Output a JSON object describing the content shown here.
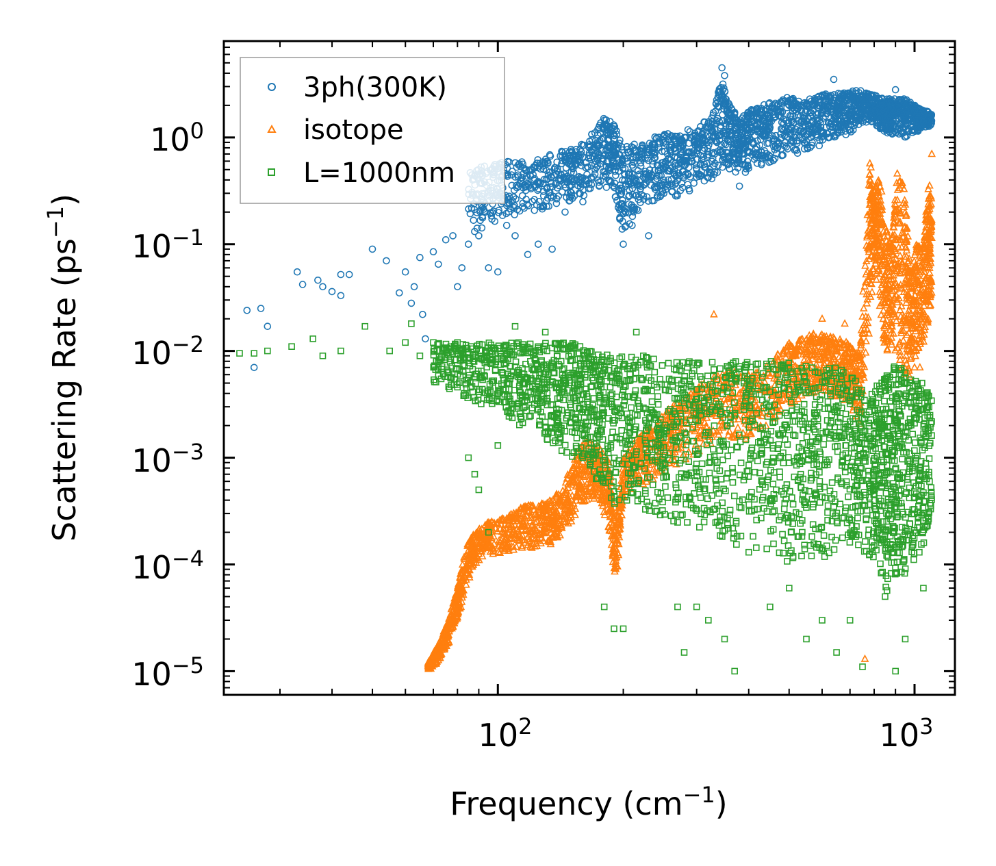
{
  "chart_data": {
    "type": "scatter",
    "title": "",
    "xlabel": {
      "base": "Frequency (cm",
      "exp": "−1",
      "suffix": ")"
    },
    "ylabel": {
      "base": "Scattering Rate (ps",
      "exp": "−1",
      "suffix": ")"
    },
    "xscale": "log",
    "yscale": "log",
    "xlim": [
      22,
      1250
    ],
    "ylim": [
      6e-06,
      8
    ],
    "x_tick_labels": [
      {
        "value": 100,
        "base": "10",
        "exp": "2"
      },
      {
        "value": 1000,
        "base": "10",
        "exp": "3"
      }
    ],
    "y_tick_labels": [
      {
        "value": 1,
        "base": "10",
        "exp": "0"
      },
      {
        "value": 0.1,
        "base": "10",
        "exp": "−1"
      },
      {
        "value": 0.01,
        "base": "10",
        "exp": "−2"
      },
      {
        "value": 0.001,
        "base": "10",
        "exp": "−3"
      },
      {
        "value": 0.0001,
        "base": "10",
        "exp": "−4"
      },
      {
        "value": 1e-05,
        "base": "10",
        "exp": "−5"
      }
    ],
    "legend_position": "top-left",
    "series": [
      {
        "name": "3ph(300K)",
        "marker": "circle",
        "color": "#1f77b4",
        "points": [
          [
            25,
            0.024
          ],
          [
            26,
            0.007
          ],
          [
            27,
            0.025
          ],
          [
            28,
            0.017
          ],
          [
            33,
            0.055
          ],
          [
            34,
            0.042
          ],
          [
            37,
            0.046
          ],
          [
            38,
            0.04
          ],
          [
            40,
            0.036
          ],
          [
            42,
            0.052
          ],
          [
            44,
            0.052
          ],
          [
            42,
            0.033
          ],
          [
            50,
            0.09
          ],
          [
            54,
            0.07
          ],
          [
            58,
            0.035
          ],
          [
            60,
            0.055
          ],
          [
            62,
            0.028
          ],
          [
            63,
            0.04
          ],
          [
            65,
            0.075
          ],
          [
            66,
            0.022
          ],
          [
            67,
            0.013
          ],
          [
            70,
            0.085
          ],
          [
            72,
            0.065
          ],
          [
            75,
            0.11
          ],
          [
            78,
            0.12
          ],
          [
            80,
            0.04
          ],
          [
            82,
            0.06
          ],
          [
            85,
            0.1
          ],
          [
            90,
            0.12
          ],
          [
            95,
            0.06
          ],
          [
            100,
            0.055
          ],
          [
            105,
            0.15
          ],
          [
            110,
            0.12
          ],
          [
            118,
            0.08
          ],
          [
            125,
            0.1
          ],
          [
            135,
            0.09
          ],
          [
            145,
            0.2
          ],
          [
            160,
            0.25
          ],
          [
            175,
            0.35
          ],
          [
            185,
            0.8
          ],
          [
            200,
            0.1
          ],
          [
            210,
            0.15
          ],
          [
            230,
            0.12
          ],
          [
            250,
            0.4
          ],
          [
            300,
            0.5
          ],
          [
            330,
            0.45
          ],
          [
            345,
            4.5
          ],
          [
            350,
            3.8
          ],
          [
            380,
            0.35
          ],
          [
            420,
            1.2
          ],
          [
            450,
            1.5
          ],
          [
            500,
            2.0
          ],
          [
            550,
            1.8
          ],
          [
            600,
            2.0
          ],
          [
            640,
            3.5
          ],
          [
            700,
            2.5
          ],
          [
            760,
            2.4
          ],
          [
            800,
            2.0
          ],
          [
            900,
            2.8
          ],
          [
            950,
            2.2
          ],
          [
            1050,
            1.4
          ]
        ],
        "bands": [
          [
            85,
            0.12,
            0.5
          ],
          [
            95,
            0.15,
            0.55
          ],
          [
            105,
            0.18,
            0.6
          ],
          [
            120,
            0.2,
            0.6
          ],
          [
            135,
            0.22,
            0.7
          ],
          [
            150,
            0.25,
            0.8
          ],
          [
            165,
            0.3,
            1.0
          ],
          [
            180,
            0.35,
            1.6
          ],
          [
            190,
            0.3,
            1.4
          ],
          [
            200,
            0.12,
            0.8
          ],
          [
            215,
            0.2,
            0.9
          ],
          [
            235,
            0.25,
            1.0
          ],
          [
            255,
            0.3,
            1.1
          ],
          [
            275,
            0.25,
            1.1
          ],
          [
            300,
            0.35,
            1.3
          ],
          [
            325,
            0.4,
            1.5
          ],
          [
            345,
            0.5,
            3.5
          ],
          [
            360,
            0.5,
            2.0
          ],
          [
            380,
            0.45,
            1.5
          ],
          [
            400,
            0.45,
            1.8
          ],
          [
            430,
            0.55,
            2.0
          ],
          [
            460,
            0.6,
            2.2
          ],
          [
            500,
            0.7,
            2.4
          ],
          [
            540,
            0.7,
            2.2
          ],
          [
            580,
            0.8,
            2.4
          ],
          [
            620,
            0.9,
            2.6
          ],
          [
            660,
            1.0,
            2.6
          ],
          [
            700,
            1.1,
            2.7
          ],
          [
            740,
            1.3,
            2.8
          ],
          [
            780,
            1.4,
            2.6
          ],
          [
            820,
            1.2,
            2.4
          ],
          [
            860,
            1.1,
            2.3
          ],
          [
            900,
            1.0,
            2.4
          ],
          [
            950,
            1.0,
            2.3
          ],
          [
            1000,
            1.1,
            2.0
          ],
          [
            1050,
            1.2,
            1.8
          ],
          [
            1100,
            1.3,
            1.7
          ]
        ]
      },
      {
        "name": "isotope",
        "marker": "triangle",
        "color": "#ff7f0e",
        "points": [
          [
            330,
            0.022
          ],
          [
            600,
            0.02
          ],
          [
            680,
            0.018
          ],
          [
            760,
            1.3e-05
          ],
          [
            1000,
            0.007
          ],
          [
            1030,
            0.007
          ],
          [
            1100,
            0.7
          ]
        ],
        "bands": [
          [
            68,
            1e-05,
            1.2e-05
          ],
          [
            72,
            1.2e-05,
            1.8e-05
          ],
          [
            76,
            1.8e-05,
            3e-05
          ],
          [
            80,
            3e-05,
            6e-05
          ],
          [
            84,
            6e-05,
            0.00015
          ],
          [
            88,
            0.0001,
            0.0002
          ],
          [
            95,
            0.00012,
            0.00025
          ],
          [
            105,
            0.00013,
            0.00028
          ],
          [
            115,
            0.00014,
            0.00035
          ],
          [
            125,
            0.00014,
            0.00038
          ],
          [
            135,
            0.00015,
            0.0004
          ],
          [
            145,
            0.0002,
            0.0006
          ],
          [
            155,
            0.0003,
            0.0012
          ],
          [
            165,
            0.0004,
            0.0015
          ],
          [
            175,
            0.0004,
            0.0013
          ],
          [
            185,
            0.0002,
            0.0009
          ],
          [
            192,
            6e-05,
            0.0002
          ],
          [
            200,
            0.0004,
            0.001
          ],
          [
            215,
            0.0005,
            0.0015
          ],
          [
            235,
            0.0006,
            0.002
          ],
          [
            260,
            0.0008,
            0.003
          ],
          [
            290,
            0.001,
            0.004
          ],
          [
            320,
            0.0012,
            0.0055
          ],
          [
            360,
            0.0015,
            0.0065
          ],
          [
            400,
            0.0015,
            0.006
          ],
          [
            450,
            0.002,
            0.008
          ],
          [
            500,
            0.003,
            0.012
          ],
          [
            540,
            0.0035,
            0.013
          ],
          [
            580,
            0.004,
            0.015
          ],
          [
            620,
            0.004,
            0.014
          ],
          [
            660,
            0.0035,
            0.013
          ],
          [
            700,
            0.003,
            0.012
          ],
          [
            740,
            0.002,
            0.01
          ],
          [
            780,
            0.015,
            0.7
          ],
          [
            800,
            0.05,
            0.3
          ],
          [
            820,
            0.03,
            0.6
          ],
          [
            850,
            0.01,
            0.15
          ],
          [
            880,
            0.01,
            0.1
          ],
          [
            910,
            0.01,
            0.6
          ],
          [
            950,
            0.005,
            0.3
          ],
          [
            980,
            0.005,
            0.05
          ],
          [
            1010,
            0.01,
            0.1
          ],
          [
            1050,
            0.01,
            0.1
          ],
          [
            1080,
            0.02,
            0.4
          ],
          [
            1100,
            0.02,
            0.3
          ]
        ]
      },
      {
        "name": "L=1000nm",
        "marker": "square",
        "color": "#2ca02c",
        "points": [
          [
            24,
            0.0095
          ],
          [
            26,
            0.0095
          ],
          [
            28,
            0.01
          ],
          [
            32,
            0.011
          ],
          [
            36,
            0.013
          ],
          [
            38,
            0.009
          ],
          [
            42,
            0.01
          ],
          [
            48,
            0.017
          ],
          [
            55,
            0.01
          ],
          [
            60,
            0.012
          ],
          [
            62,
            0.018
          ],
          [
            65,
            0.009
          ],
          [
            70,
            0.012
          ],
          [
            80,
            0.012
          ],
          [
            85,
            0.001
          ],
          [
            88,
            0.0007
          ],
          [
            90,
            0.0005
          ],
          [
            95,
            0.0002
          ],
          [
            100,
            0.0013
          ],
          [
            110,
            0.017
          ],
          [
            130,
            0.015
          ],
          [
            160,
            0.001
          ],
          [
            180,
            4e-05
          ],
          [
            190,
            2.5e-05
          ],
          [
            200,
            2.5e-05
          ],
          [
            215,
            0.015
          ],
          [
            270,
            4e-05
          ],
          [
            280,
            1.5e-05
          ],
          [
            300,
            4e-05
          ],
          [
            320,
            3e-05
          ],
          [
            350,
            2e-05
          ],
          [
            370,
            1e-05
          ],
          [
            400,
            0.00013
          ],
          [
            450,
            4e-05
          ],
          [
            500,
            6e-05
          ],
          [
            550,
            2e-05
          ],
          [
            600,
            3e-05
          ],
          [
            650,
            1.5e-05
          ],
          [
            700,
            3e-05
          ],
          [
            750,
            1.1e-05
          ],
          [
            800,
            0.00015
          ],
          [
            850,
            5e-05
          ],
          [
            900,
            1e-05
          ],
          [
            950,
            2e-05
          ],
          [
            1050,
            6e-05
          ]
        ],
        "bands": [
          [
            70,
            0.005,
            0.012
          ],
          [
            80,
            0.004,
            0.012
          ],
          [
            90,
            0.003,
            0.012
          ],
          [
            100,
            0.003,
            0.012
          ],
          [
            110,
            0.002,
            0.012
          ],
          [
            120,
            0.002,
            0.012
          ],
          [
            130,
            0.0015,
            0.012
          ],
          [
            140,
            0.0012,
            0.012
          ],
          [
            150,
            0.001,
            0.012
          ],
          [
            160,
            0.0008,
            0.011
          ],
          [
            170,
            0.0006,
            0.01
          ],
          [
            180,
            0.0005,
            0.01
          ],
          [
            195,
            0.0003,
            0.009
          ],
          [
            210,
            0.0004,
            0.009
          ],
          [
            230,
            0.0003,
            0.009
          ],
          [
            250,
            0.00025,
            0.008
          ],
          [
            275,
            0.0002,
            0.008
          ],
          [
            300,
            0.0002,
            0.008
          ],
          [
            330,
            0.00015,
            0.008
          ],
          [
            360,
            0.00015,
            0.008
          ],
          [
            400,
            0.00015,
            0.008
          ],
          [
            440,
            0.00012,
            0.008
          ],
          [
            480,
            0.0001,
            0.008
          ],
          [
            520,
            0.0001,
            0.008
          ],
          [
            560,
            0.0001,
            0.008
          ],
          [
            600,
            0.0001,
            0.008
          ],
          [
            650,
            0.0001,
            0.007
          ],
          [
            700,
            0.00012,
            0.006
          ],
          [
            740,
            0.00015,
            0.005
          ],
          [
            790,
            0.0001,
            0.004
          ],
          [
            820,
            8e-05,
            0.005
          ],
          [
            850,
            6e-05,
            0.006
          ],
          [
            880,
            5e-05,
            0.007
          ],
          [
            910,
            6e-05,
            0.008
          ],
          [
            950,
            8e-05,
            0.007
          ],
          [
            1000,
            0.0001,
            0.006
          ],
          [
            1050,
            0.00012,
            0.005
          ],
          [
            1100,
            0.0002,
            0.004
          ]
        ]
      }
    ]
  }
}
